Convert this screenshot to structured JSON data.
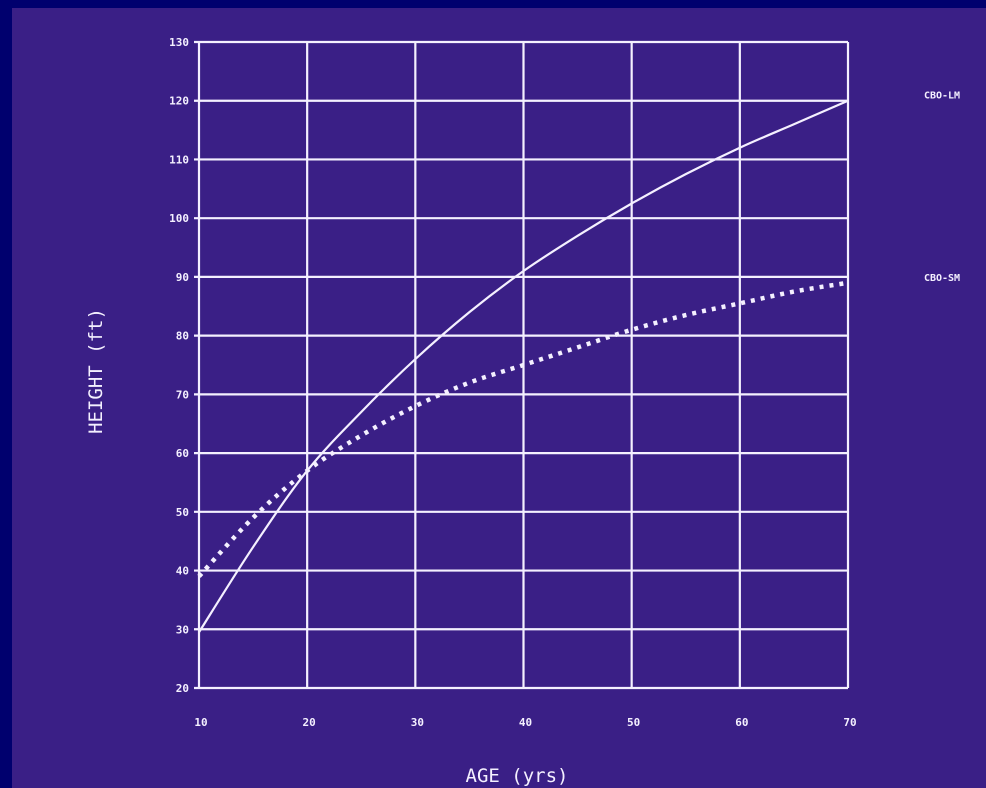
{
  "colors": {
    "background": "#3a1f86",
    "border": "#00006e",
    "ink": "#f4f0ff"
  },
  "chart_data": {
    "type": "line",
    "xlabel": "AGE (yrs)",
    "ylabel": "HEIGHT (ft)",
    "xlim": [
      10,
      70
    ],
    "ylim": [
      20,
      130
    ],
    "xticks": [
      "10",
      "20",
      "30",
      "40",
      "50",
      "60",
      "70"
    ],
    "yticks": [
      "20",
      "30",
      "40",
      "50",
      "60",
      "70",
      "80",
      "90",
      "100",
      "110",
      "120",
      "130"
    ],
    "grid": true,
    "series": [
      {
        "name": "CBO-LM",
        "style": "solid",
        "x": [
          10,
          15,
          20,
          25,
          30,
          35,
          40,
          45,
          50,
          55,
          60,
          65,
          70
        ],
        "y": [
          29.5,
          44,
          57,
          67,
          76,
          84,
          91,
          97,
          102.5,
          107.5,
          112,
          116,
          120
        ]
      },
      {
        "name": "CBO-SM",
        "style": "dotted",
        "x": [
          10,
          15,
          20,
          25,
          30,
          35,
          40,
          45,
          50,
          55,
          60,
          65,
          70
        ],
        "y": [
          39,
          49,
          57,
          63,
          68,
          72,
          75,
          78,
          81,
          83.5,
          85.5,
          87.5,
          89
        ]
      }
    ]
  }
}
